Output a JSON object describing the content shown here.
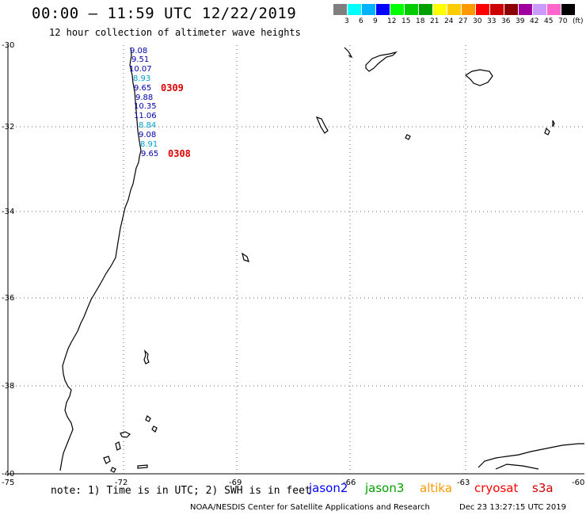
{
  "header": {
    "title": "00:00 – 11:59 UTC 12/22/2019",
    "subtitle": "12 hour collection of altimeter wave heights"
  },
  "legend": {
    "colors": [
      "#7f7f7f",
      "#00ffff",
      "#00b2ff",
      "#0000ff",
      "#00ff00",
      "#00cc00",
      "#00a000",
      "#ffff00",
      "#ffcc00",
      "#ff9900",
      "#ff0000",
      "#cc0000",
      "#8b0000",
      "#a000a0",
      "#cc99ff",
      "#ff66cc",
      "#000000"
    ],
    "labels": [
      "3",
      "6",
      "9",
      "12",
      "15",
      "18",
      "21",
      "24",
      "27",
      "30",
      "33",
      "36",
      "39",
      "42",
      "45",
      "70",
      "(ft)"
    ]
  },
  "axes": {
    "lat_labels": [
      "-30",
      "-32",
      "-34",
      "-36",
      "-38",
      "-40"
    ],
    "lon_labels": [
      "-75",
      "-72",
      "-69",
      "-66",
      "-63",
      "-60"
    ]
  },
  "track": {
    "values": [
      {
        "v": "9.08",
        "c": "#0000aa"
      },
      {
        "v": "9.51",
        "c": "#0000aa"
      },
      {
        "v": "10.07",
        "c": "#0000aa"
      },
      {
        "v": "8.93",
        "c": "#00a0c8"
      },
      {
        "v": "9.65",
        "c": "#0000aa"
      },
      {
        "v": "9.88",
        "c": "#0000aa"
      },
      {
        "v": "10.35",
        "c": "#0000aa"
      },
      {
        "v": "11.06",
        "c": "#0000aa"
      },
      {
        "v": "8.84",
        "c": "#00a0c8"
      },
      {
        "v": "9.08",
        "c": "#0000aa"
      },
      {
        "v": "8.91",
        "c": "#00a0c8"
      },
      {
        "v": "9.65",
        "c": "#0000aa"
      }
    ],
    "times": [
      "0309",
      "0308"
    ]
  },
  "footer": {
    "note": "note: 1) Time is in UTC; 2) SWH is in feet",
    "satellites": [
      {
        "name": "jason2",
        "color": "#0000ff"
      },
      {
        "name": "jason3",
        "color": "#00a000"
      },
      {
        "name": "altika",
        "color": "#ff9900"
      },
      {
        "name": "cryosat",
        "color": "#ff0000"
      },
      {
        "name": "s3a",
        "color": "#cc0000"
      }
    ],
    "credit": "NOAA/NESDIS Center for Satellite Applications and Research",
    "timestamp": "Dec 23 13:27:15 UTC 2019"
  }
}
